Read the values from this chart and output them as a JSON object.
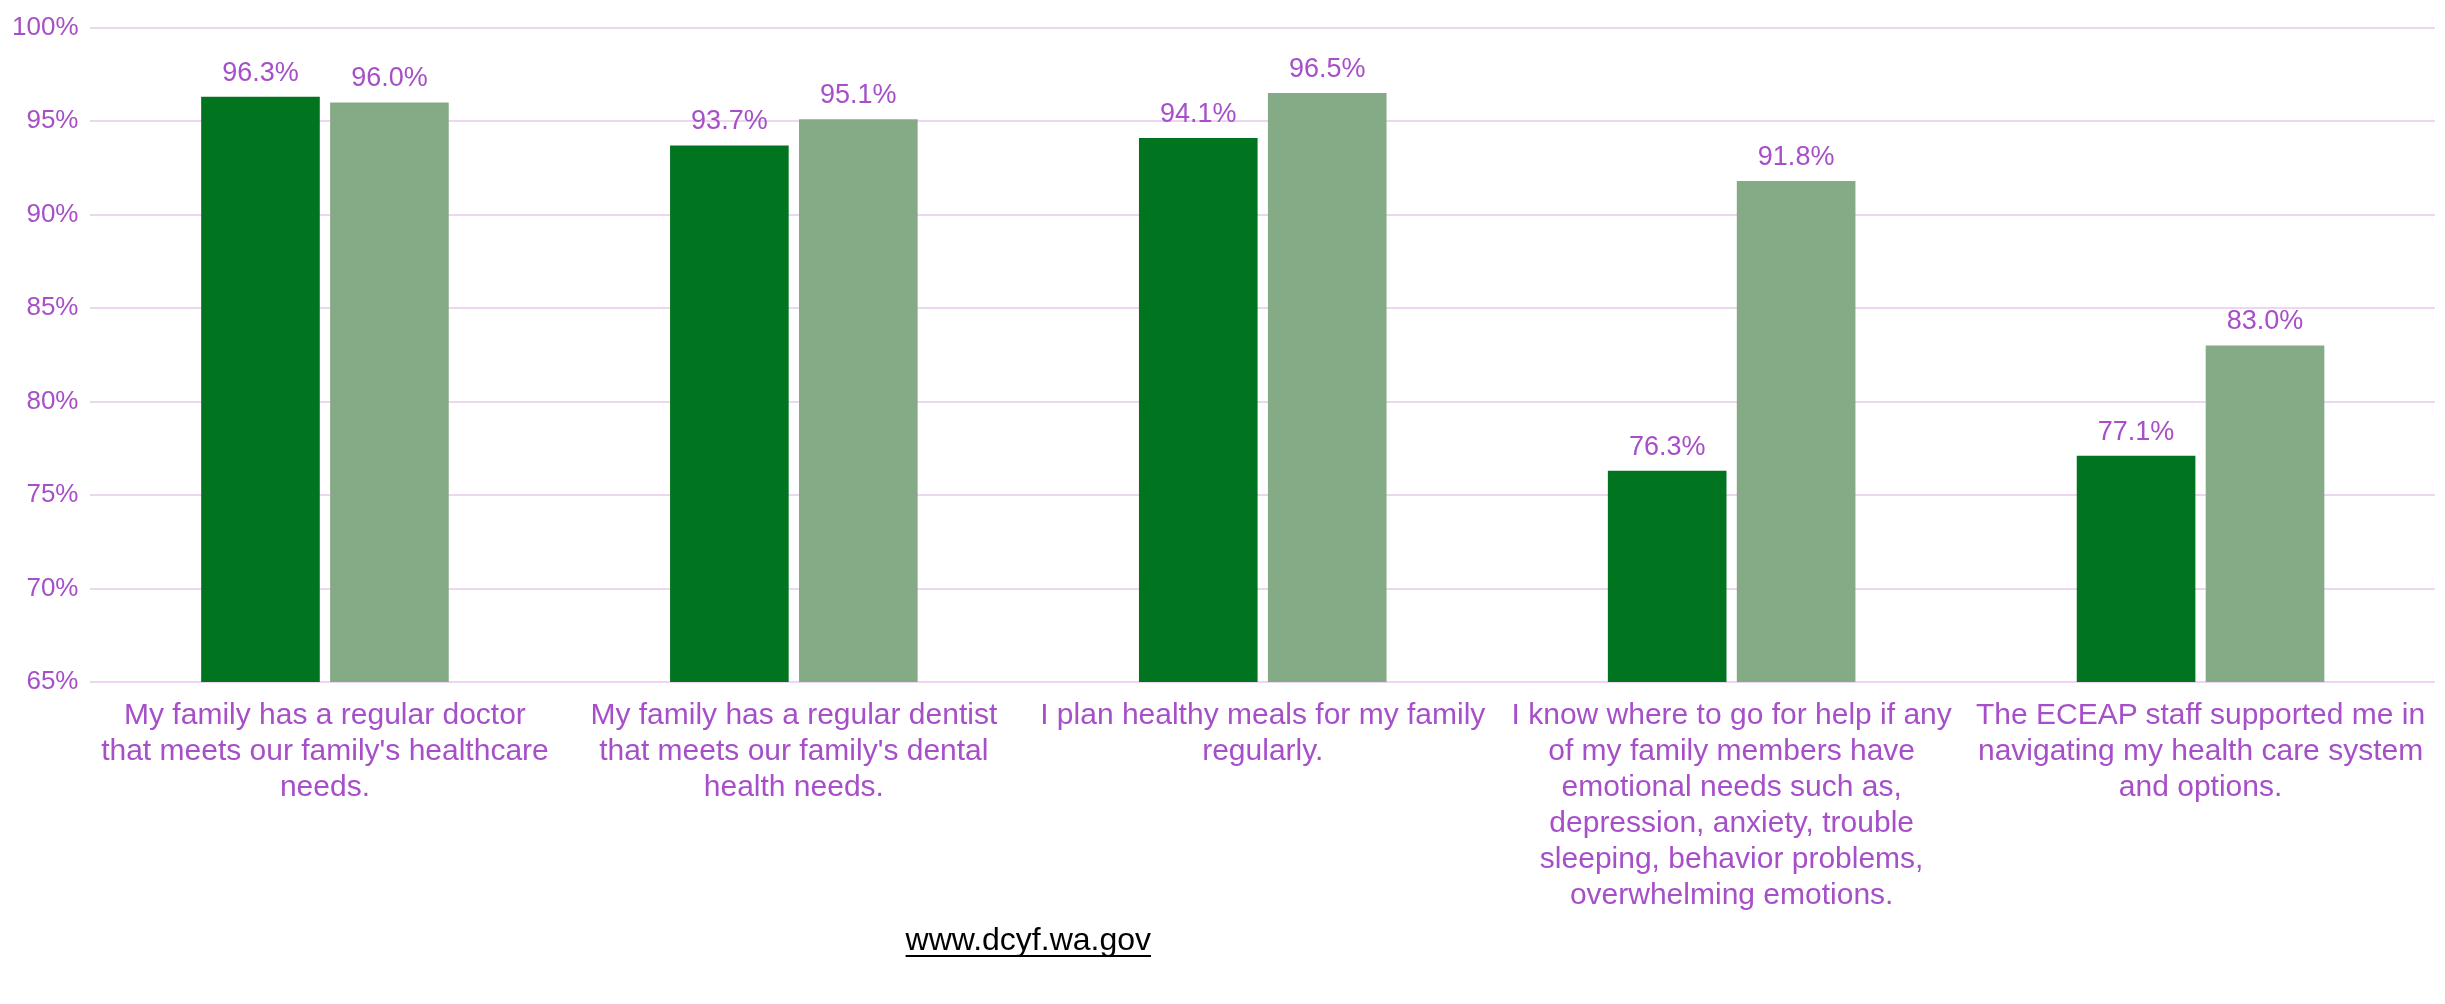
{
  "chart_data": {
    "type": "bar",
    "categories": [
      "My family has a regular doctor that meets our family's healthcare needs.",
      "My family has a regular dentist that meets our family's dental health needs.",
      "I plan healthy meals for my family regularly.",
      "I know where to go for help if any of my family members have emotional needs such as, depression, anxiety, trouble sleeping, behavior problems, overwhelming emotions.",
      "The ECEAP staff supported me in navigating my health care system and options."
    ],
    "series": [
      {
        "color": "#00741f",
        "values": [
          96.3,
          93.7,
          94.1,
          76.3,
          77.1
        ],
        "value_labels": [
          "96.3%",
          "93.7%",
          "94.1%",
          "76.3%",
          "77.1%"
        ]
      },
      {
        "color": "#84ab86",
        "values": [
          96.0,
          95.1,
          96.5,
          91.8,
          83.0
        ],
        "value_labels": [
          "96.0%",
          "95.1%",
          "96.5%",
          "91.8%",
          "83.0%"
        ]
      }
    ],
    "ylim": [
      65,
      100
    ],
    "yticks": [
      {
        "value": 65,
        "label": "65%"
      },
      {
        "value": 70,
        "label": "70%"
      },
      {
        "value": 75,
        "label": "75%"
      },
      {
        "value": 80,
        "label": "80%"
      },
      {
        "value": 85,
        "label": "85%"
      },
      {
        "value": 90,
        "label": "90%"
      },
      {
        "value": 95,
        "label": "95%"
      },
      {
        "value": 100,
        "label": "100%"
      }
    ],
    "grid": "y",
    "legend": false,
    "annotations": [
      {
        "text": "www.dcyf.wa.gov"
      }
    ]
  }
}
